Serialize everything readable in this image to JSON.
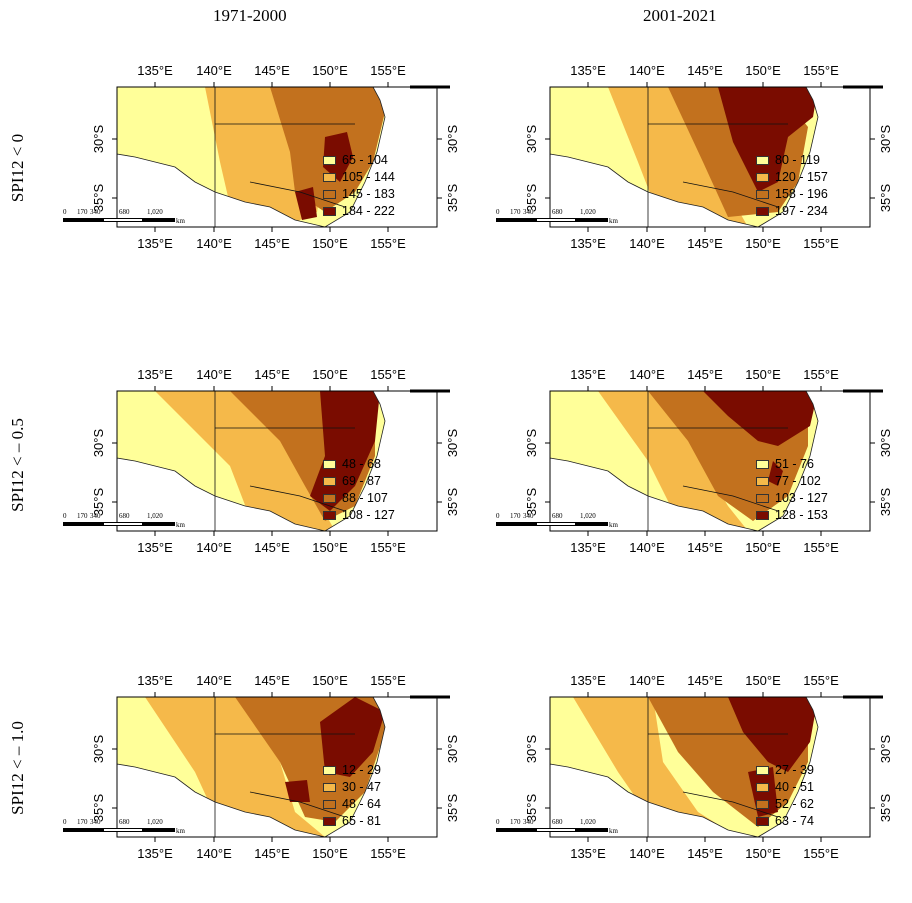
{
  "columns": [
    "1971-2000",
    "2001-2021"
  ],
  "rows": [
    "SPI12 < 0",
    "SPI12 < – 0.5",
    "SPI12 < – 1.0"
  ],
  "lon_ticks": [
    "135°E",
    "140°E",
    "145°E",
    "150°E",
    "155°E"
  ],
  "lat_ticks": [
    "30°S",
    "35°S"
  ],
  "scale_labels": [
    "0",
    "170",
    "340",
    "680",
    "1,020",
    "km"
  ],
  "colors": [
    "#ffff99",
    "#f5b94a",
    "#c2711e",
    "#7a0c00"
  ],
  "panels": [
    {
      "legend": [
        "65 - 104",
        "105 - 144",
        "145 - 183",
        "184 - 222"
      ]
    },
    {
      "legend": [
        "80 - 119",
        "120 - 157",
        "158 - 196",
        "197 - 234"
      ]
    },
    {
      "legend": [
        "48 - 68",
        "69 - 87",
        "88 - 107",
        "108 - 127"
      ]
    },
    {
      "legend": [
        "51 - 76",
        "77 - 102",
        "103 - 127",
        "128 - 153"
      ]
    },
    {
      "legend": [
        "12 - 29",
        "30 - 47",
        "48 - 64",
        "65 - 81"
      ]
    },
    {
      "legend": [
        "27 - 39",
        "40 - 51",
        "52 - 62",
        "63 - 74"
      ]
    }
  ]
}
